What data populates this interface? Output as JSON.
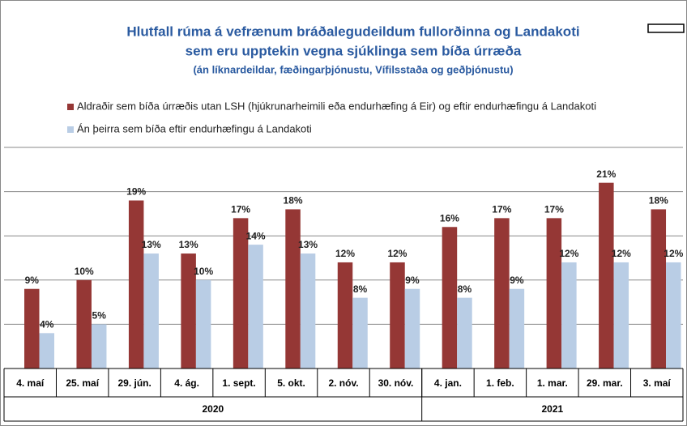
{
  "chart_data": {
    "type": "bar",
    "title": [
      "Hlutfall rúma á vefrænum bráðalegudeildum fullorðinna og Landakoti",
      "sem eru upptekin  vegna sjúklinga sem bíða úrræða"
    ],
    "subtitle": "(án líknardeildar, fæðingarþjónustu, Vífilsstaða og geðþjónustu)",
    "categories": [
      "4. maí",
      "25. maí",
      "29. jún.",
      "4. ág.",
      "1. sept.",
      "5. okt.",
      "2. nóv.",
      "30. nóv.",
      "4. jan.",
      "1. feb.",
      "1. mar.",
      "29. mar.",
      "3. maí"
    ],
    "groups": [
      {
        "label": "2020",
        "count": 8
      },
      {
        "label": "2021",
        "count": 5
      }
    ],
    "series": [
      {
        "name": "Aldraðir sem bíða úrræðis utan LSH (hjúkrunarheimili eða endurhæfing á Eir) og eftir endurhæfingu á Landakoti",
        "color": "#953735",
        "values": [
          9,
          10,
          19,
          13,
          17,
          18,
          12,
          12,
          16,
          17,
          17,
          21,
          18
        ],
        "value_labels": [
          "9%",
          "10%",
          "19%",
          "13%",
          "17%",
          "18%",
          "12%",
          "12%",
          "16%",
          "17%",
          "17%",
          "21%",
          "18%"
        ]
      },
      {
        "name": "Án þeirra sem bíða eftir endurhæfingu á Landakoti",
        "color": "#b9cde5",
        "values": [
          4,
          5,
          13,
          10,
          14,
          13,
          8,
          9,
          8,
          9,
          12,
          12,
          12
        ],
        "value_labels": [
          "4%",
          "5%",
          "13%",
          "10%",
          "14%",
          "13%",
          "8%",
          "9%",
          "8%",
          "9%",
          "12%",
          "12%",
          "12%"
        ]
      }
    ],
    "ylim": [
      0,
      25
    ],
    "yticks": [
      5,
      10,
      15,
      20,
      25
    ],
    "grid": true
  }
}
